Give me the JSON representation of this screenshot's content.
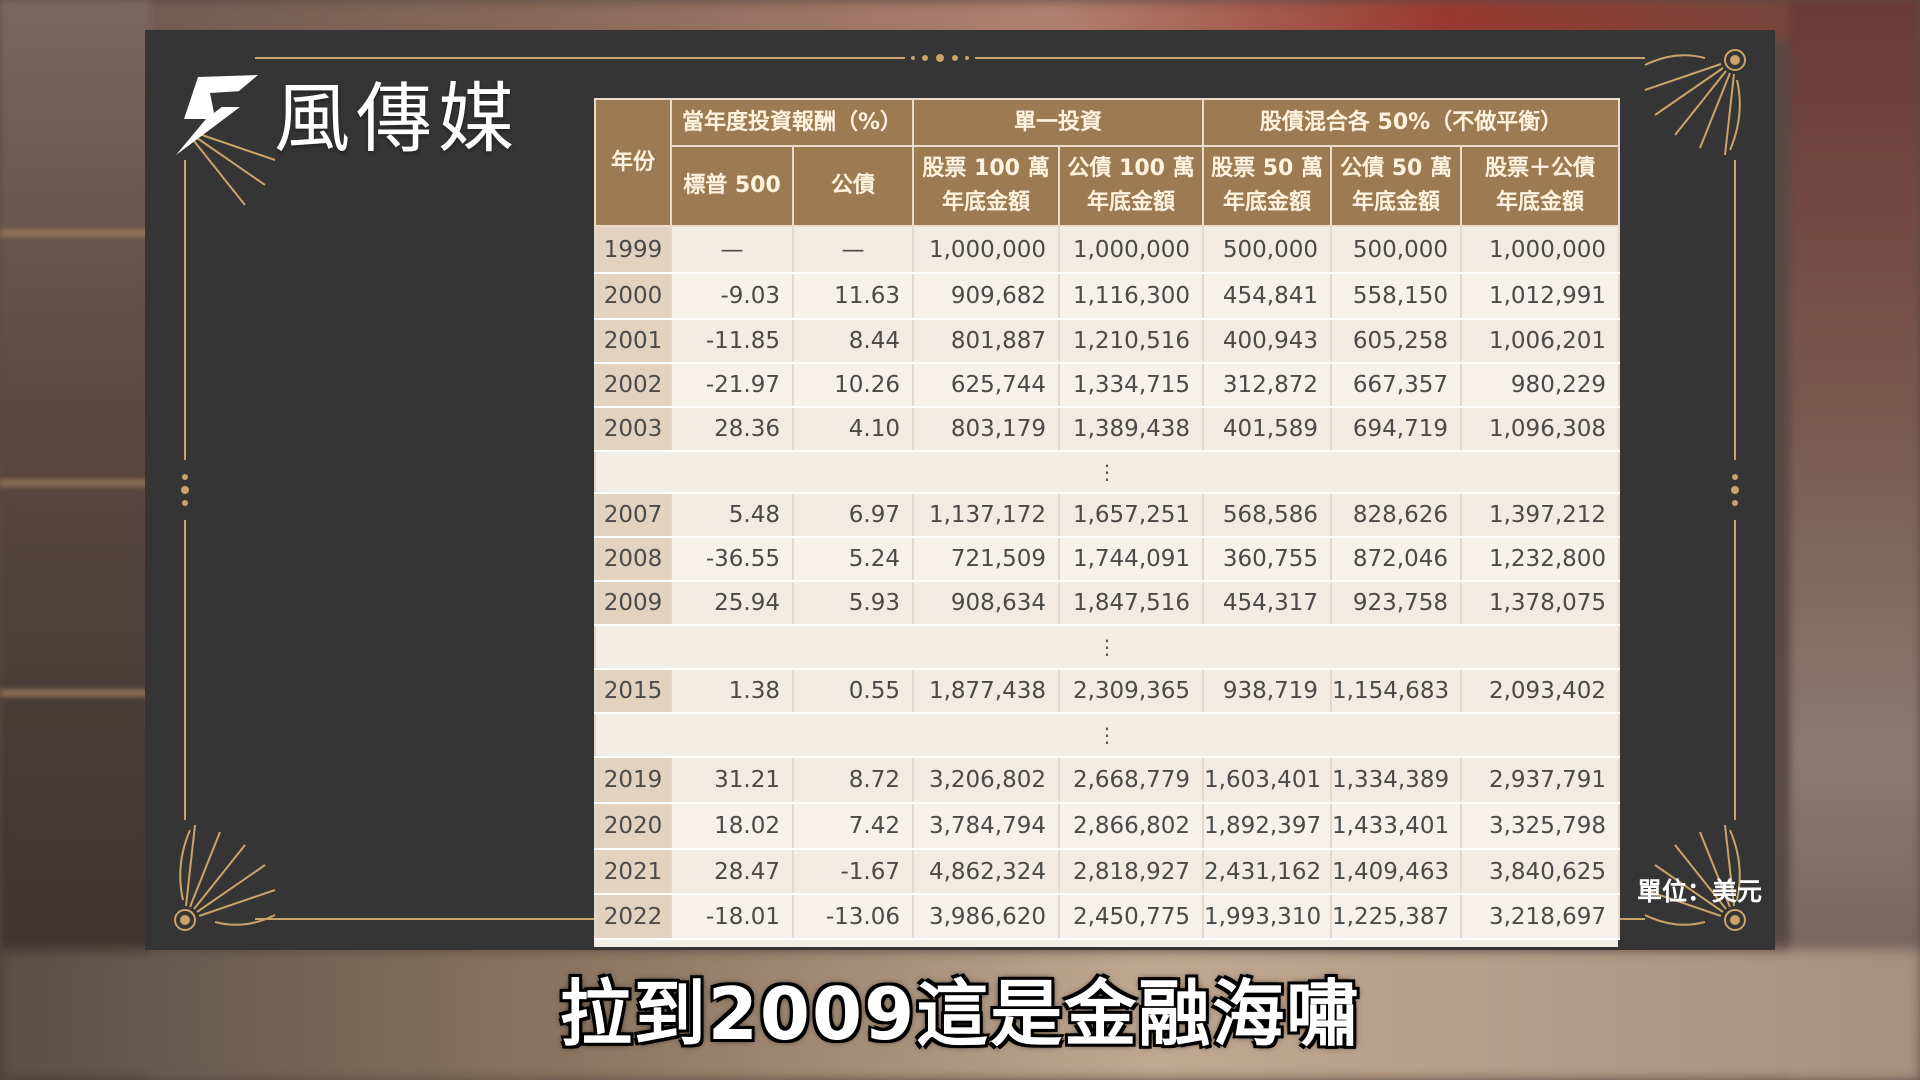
{
  "brand": {
    "name": "風傳媒"
  },
  "table": {
    "header": {
      "year": "年份",
      "group_return": "當年度投資報酬（%）",
      "group_single": "單一投資",
      "group_mixed": "股債混合各 50%（不做平衡）",
      "col_sp500": "標普 500",
      "col_bond": "公債",
      "col_stock100": [
        "股票 100 萬",
        "年底金額"
      ],
      "col_bond100": [
        "公債 100 萬",
        "年底金額"
      ],
      "col_stock50": [
        "股票 50 萬",
        "年底金額"
      ],
      "col_bond50": [
        "公債 50 萬",
        "年底金額"
      ],
      "col_total": [
        "股票＋公債",
        "年底金額"
      ]
    },
    "rows": [
      {
        "year": "1999",
        "sp": "—",
        "bond": "—",
        "s100": "1,000,000",
        "b100": "1,000,000",
        "s50": "500,000",
        "b50": "500,000",
        "tot": "1,000,000"
      },
      {
        "year": "2000",
        "sp": "-9.03",
        "bond": "11.63",
        "s100": "909,682",
        "b100": "1,116,300",
        "s50": "454,841",
        "b50": "558,150",
        "tot": "1,012,991"
      },
      {
        "year": "2001",
        "sp": "-11.85",
        "bond": "8.44",
        "s100": "801,887",
        "b100": "1,210,516",
        "s50": "400,943",
        "b50": "605,258",
        "tot": "1,006,201"
      },
      {
        "year": "2002",
        "sp": "-21.97",
        "bond": "10.26",
        "s100": "625,744",
        "b100": "1,334,715",
        "s50": "312,872",
        "b50": "667,357",
        "tot": "980,229"
      },
      {
        "year": "2003",
        "sp": "28.36",
        "bond": "4.10",
        "s100": "803,179",
        "b100": "1,389,438",
        "s50": "401,589",
        "b50": "694,719",
        "tot": "1,096,308"
      },
      {
        "gap": "⋮"
      },
      {
        "year": "2007",
        "sp": "5.48",
        "bond": "6.97",
        "s100": "1,137,172",
        "b100": "1,657,251",
        "s50": "568,586",
        "b50": "828,626",
        "tot": "1,397,212"
      },
      {
        "year": "2008",
        "sp": "-36.55",
        "bond": "5.24",
        "s100": "721,509",
        "b100": "1,744,091",
        "s50": "360,755",
        "b50": "872,046",
        "tot": "1,232,800"
      },
      {
        "year": "2009",
        "sp": "25.94",
        "bond": "5.93",
        "s100": "908,634",
        "b100": "1,847,516",
        "s50": "454,317",
        "b50": "923,758",
        "tot": "1,378,075"
      },
      {
        "gap": "⋮"
      },
      {
        "year": "2015",
        "sp": "1.38",
        "bond": "0.55",
        "s100": "1,877,438",
        "b100": "2,309,365",
        "s50": "938,719",
        "b50": "1,154,683",
        "tot": "2,093,402"
      },
      {
        "gap": "⋮"
      },
      {
        "year": "2019",
        "sp": "31.21",
        "bond": "8.72",
        "s100": "3,206,802",
        "b100": "2,668,779",
        "s50": "1,603,401",
        "b50": "1,334,389",
        "tot": "2,937,791"
      },
      {
        "year": "2020",
        "sp": "18.02",
        "bond": "7.42",
        "s100": "3,784,794",
        "b100": "2,866,802",
        "s50": "1,892,397",
        "b50": "1,433,401",
        "tot": "3,325,798"
      },
      {
        "year": "2021",
        "sp": "28.47",
        "bond": "-1.67",
        "s100": "4,862,324",
        "b100": "2,818,927",
        "s50": "2,431,162",
        "b50": "1,409,463",
        "tot": "3,840,625"
      },
      {
        "year": "2022",
        "sp": "-18.01",
        "bond": "-13.06",
        "s100": "3,986,620",
        "b100": "2,450,775",
        "s50": "1,993,310",
        "b50": "1,225,387",
        "tot": "3,218,697"
      }
    ]
  },
  "unit_note": "單位：美元",
  "subtitle": "拉到2009這是金融海嘯",
  "colors": {
    "header_bg": "#9c7a52",
    "panel_bg": "#353535",
    "ornament": "#c9a36a"
  },
  "icons": [
    "brand-logo-icon",
    "corner-sunburst-icon"
  ]
}
